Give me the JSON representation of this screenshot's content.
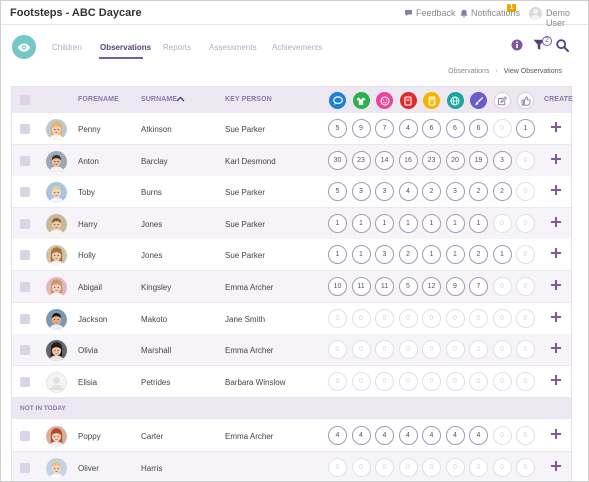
{
  "app": {
    "title": "Footsteps - ABC Daycare"
  },
  "topbar": {
    "feedback": "Feedback",
    "notifications": "Notifications",
    "notifications_count": "1",
    "user": "Demo User"
  },
  "nav": {
    "tabs": [
      "Children",
      "Observations",
      "Reports",
      "Assessments",
      "Achievements"
    ],
    "active": "Observations",
    "filter_count": "2"
  },
  "breadcrumb": {
    "items": [
      "Observations",
      "View Observations"
    ]
  },
  "table": {
    "headers": {
      "forename": "FORENAME",
      "surname": "SURNAME",
      "key_person": "KEY PERSON",
      "create": "CREATE"
    },
    "category_icons": [
      {
        "name": "speech-bubble-icon",
        "color": "#1f7fd6"
      },
      {
        "name": "shirt-icon",
        "color": "#2bb24c"
      },
      {
        "name": "smiley-icon",
        "color": "#e8469a"
      },
      {
        "name": "book-icon",
        "color": "#e02b2b"
      },
      {
        "name": "calculator-icon",
        "color": "#f4b400"
      },
      {
        "name": "globe-icon",
        "color": "#1aa69a"
      },
      {
        "name": "paintbrush-icon",
        "color": "#6b5cc7"
      },
      {
        "name": "edit-icon",
        "color": "#8a7aa0"
      },
      {
        "name": "thumbs-up-icon",
        "color": "#8a7aa0"
      }
    ],
    "rows": [
      {
        "forename": "Penny",
        "surname": "Atkinson",
        "key_person": "Sue Parker",
        "counts": [
          "5",
          "9",
          "7",
          "4",
          "6",
          "6",
          "6",
          "0",
          "1"
        ],
        "photo": "girl-blonde"
      },
      {
        "forename": "Anton",
        "surname": "Barclay",
        "key_person": "Karl Desmond",
        "counts": [
          "30",
          "23",
          "14",
          "16",
          "23",
          "20",
          "19",
          "3",
          "0"
        ],
        "photo": "boy-dark"
      },
      {
        "forename": "Toby",
        "surname": "Burns",
        "key_person": "Sue Parker",
        "counts": [
          "5",
          "3",
          "3",
          "4",
          "2",
          "3",
          "2",
          "2",
          "0"
        ],
        "photo": "boy-blonde"
      },
      {
        "forename": "Harry",
        "surname": "Jones",
        "key_person": "Sue Parker",
        "counts": [
          "1",
          "1",
          "1",
          "1",
          "1",
          "1",
          "1",
          "0",
          "0"
        ],
        "photo": "boy-brown"
      },
      {
        "forename": "Holly",
        "surname": "Jones",
        "key_person": "Sue Parker",
        "counts": [
          "1",
          "1",
          "3",
          "2",
          "1",
          "1",
          "2",
          "1",
          "0"
        ],
        "photo": "girl-brown"
      },
      {
        "forename": "Abigail",
        "surname": "Kingsley",
        "key_person": "Emma Archer",
        "counts": [
          "10",
          "11",
          "11",
          "5",
          "12",
          "9",
          "7",
          "0",
          "0"
        ],
        "photo": "girl-pink"
      },
      {
        "forename": "Jackson",
        "surname": "Makoto",
        "key_person": "Jane Smith",
        "counts": [
          "0",
          "0",
          "0",
          "0",
          "0",
          "0",
          "0",
          "0",
          "0"
        ],
        "photo": "boy-black"
      },
      {
        "forename": "Olivia",
        "surname": "Marshall",
        "key_person": "Emma Archer",
        "counts": [
          "0",
          "0",
          "0",
          "0",
          "0",
          "0",
          "0",
          "0",
          "0"
        ],
        "photo": "girl-dark"
      },
      {
        "forename": "Elisia",
        "surname": "Petrides",
        "key_person": "Barbara Winslow",
        "counts": [
          "0",
          "0",
          "0",
          "0",
          "0",
          "0",
          "0",
          "0",
          "0"
        ],
        "photo": "none"
      }
    ],
    "section_label": "NOT IN TODAY",
    "rows_absent": [
      {
        "forename": "Poppy",
        "surname": "Carter",
        "key_person": "Emma Archer",
        "counts": [
          "4",
          "4",
          "4",
          "4",
          "4",
          "4",
          "4",
          "0",
          "0"
        ],
        "photo": "girl-red"
      },
      {
        "forename": "Oliver",
        "surname": "Harris",
        "key_person": "",
        "counts": [
          "0",
          "0",
          "0",
          "0",
          "0",
          "0",
          "0",
          "0",
          "0"
        ],
        "photo": "boy-blonde2"
      }
    ]
  }
}
